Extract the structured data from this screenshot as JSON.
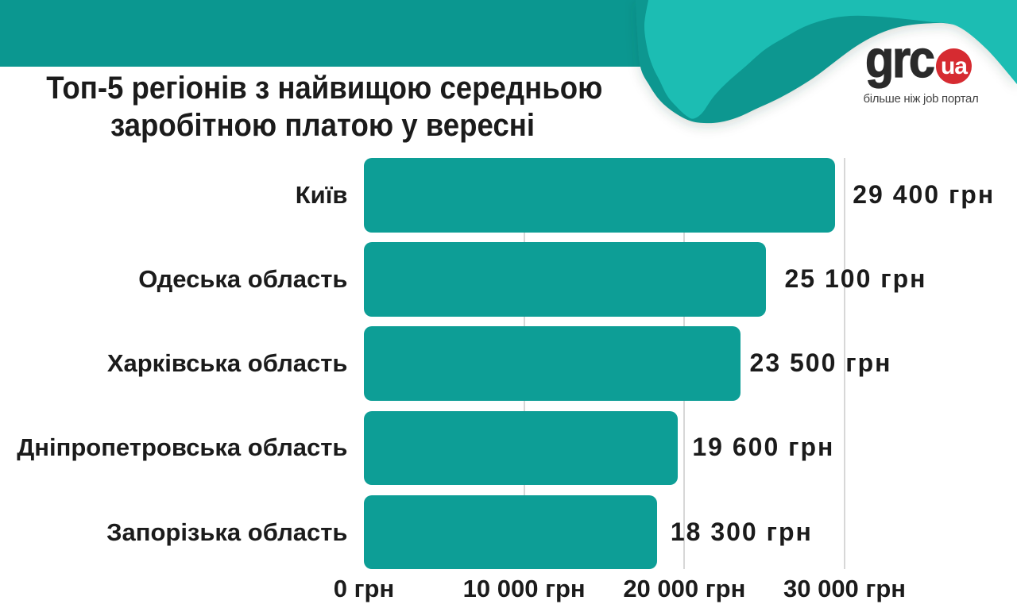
{
  "title": {
    "line1": "Топ-5 регіонів з найвищою середньою",
    "line2": "заробітною платою у вересні"
  },
  "logo": {
    "name": "grc",
    "badge": "ua",
    "tagline": "більше ніж job портал"
  },
  "chart_data": {
    "type": "bar",
    "orientation": "horizontal",
    "title": "Топ-5 регіонів з найвищою середньою заробітною платою у вересні",
    "categories": [
      "Київ",
      "Одеська область",
      "Харківська область",
      "Дніпропетровська область",
      "Запорізька область"
    ],
    "values": [
      29400,
      25100,
      23500,
      19600,
      18300
    ],
    "value_labels": [
      "29 400 грн",
      "25 100 грн",
      "23 500 грн",
      "19 600 грн",
      "18 300 грн"
    ],
    "x_ticks": [
      {
        "value": 0,
        "label": "0 грн"
      },
      {
        "value": 10000,
        "label": "10 000 грн"
      },
      {
        "value": 20000,
        "label": "20 000 грн"
      },
      {
        "value": 30000,
        "label": "30 000 грн"
      }
    ],
    "xlim": [
      0,
      30000
    ],
    "grid": true,
    "legend": false
  },
  "colors": {
    "bar": "#0d9e96",
    "band": "#0b9790",
    "wave_dark": "#0b9790",
    "wave_light": "#1abdb3",
    "badge_red": "#d62b31",
    "gridline": "#d7d7d7",
    "text": "#1b1b1b"
  }
}
